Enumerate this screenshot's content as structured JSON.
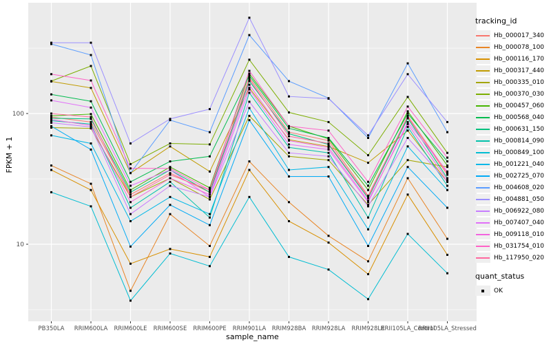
{
  "figure": {
    "background": "#FFFFFF",
    "panel_background": "#EBEBEB",
    "grid_color": "#FFFFFF",
    "point_color": "#000000",
    "axis_text_color": "#4D4D4D",
    "tick_color": "#333333"
  },
  "legend": {
    "tracking_title": "tracking_id",
    "quant_title": "quant_status",
    "quant_label": "OK"
  },
  "chart_data": {
    "type": "line",
    "title": "",
    "xlabel": "sample_name",
    "ylabel": "FPKM + 1",
    "y_scale": "log10",
    "y_ticks": [
      100,
      10
    ],
    "y_minor_ticks": [
      316,
      31.6,
      3.16
    ],
    "ylim": [
      2.6,
      650
    ],
    "grid": true,
    "legend_position": "right",
    "point_shape": "filled-square",
    "quant_status": "OK",
    "categories": [
      "PB350LA",
      "RRIM600LA",
      "RRIM600LE",
      "RRIM600SE",
      "RRIM600PE",
      "RRIM901LA",
      "RRIM928BA",
      "RRIM928LA",
      "RRIM928LE",
      "RRII105LA_Control",
      "RRII105LA_Stressed"
    ],
    "series": [
      {
        "name": "Hb_000017_340",
        "color": "#F8766D",
        "values": [
          94,
          86,
          24,
          35,
          25,
          188,
          72,
          62,
          23.5,
          94,
          34
        ]
      },
      {
        "name": "Hb_000078_100",
        "color": "#E88526",
        "values": [
          40,
          29,
          4.4,
          17,
          9.7,
          43,
          21,
          11.6,
          7.4,
          32,
          11
        ]
      },
      {
        "name": "Hb_000116_170",
        "color": "#D89000",
        "values": [
          37,
          26,
          7.1,
          9.2,
          8.0,
          37,
          15,
          10.3,
          5.9,
          24,
          8.3
        ]
      },
      {
        "name": "Hb_000317_440",
        "color": "#C09B00",
        "values": [
          176,
          157,
          35,
          56,
          36,
          157,
          63,
          56,
          42,
          74,
          30
        ]
      },
      {
        "name": "Hb_000335_010",
        "color": "#A3A500",
        "values": [
          78,
          77,
          23,
          32,
          22,
          96,
          47,
          44,
          20,
          44,
          39
        ]
      },
      {
        "name": "Hb_000370_030",
        "color": "#7CAE00",
        "values": [
          177,
          231,
          41,
          59,
          58,
          258,
          102,
          86,
          48,
          134,
          50
        ]
      },
      {
        "name": "Hb_000457_060",
        "color": "#45B500",
        "values": [
          96,
          99,
          26,
          39,
          27,
          202,
          80,
          64,
          26,
          104,
          40
        ]
      },
      {
        "name": "Hb_000568_040",
        "color": "#00BB4E",
        "values": [
          140,
          124,
          30,
          43,
          47,
          195,
          77,
          65,
          28,
          100,
          43
        ]
      },
      {
        "name": "Hb_000631_150",
        "color": "#00C07D",
        "values": [
          92,
          91,
          25,
          37,
          25,
          177,
          70,
          58,
          22.5,
          92,
          32
        ]
      },
      {
        "name": "Hb_000814_090",
        "color": "#00C1AA",
        "values": [
          88,
          83,
          19,
          30,
          16,
          144,
          55,
          50,
          16,
          79,
          28
        ]
      },
      {
        "name": "Hb_000849_100",
        "color": "#00BDD2",
        "values": [
          25,
          19.5,
          3.7,
          8.5,
          6.8,
          23,
          8.0,
          6.4,
          3.8,
          12,
          6.0
        ]
      },
      {
        "name": "Hb_001221_040",
        "color": "#00B7E7",
        "values": [
          68,
          59,
          15,
          23,
          17,
          110,
          37,
          39,
          13,
          56,
          26
        ]
      },
      {
        "name": "Hb_002725_070",
        "color": "#00AAF6",
        "values": [
          80,
          53,
          9.6,
          20,
          14,
          89,
          33,
          33,
          9.7,
          39,
          19
        ]
      },
      {
        "name": "Hb_004608_020",
        "color": "#5B9DFF",
        "values": [
          340,
          280,
          35,
          89,
          72,
          398,
          177,
          131,
          65,
          242,
          72
        ]
      },
      {
        "name": "Hb_004881_050",
        "color": "#9B8FFF",
        "values": [
          348,
          348,
          59,
          91,
          108,
          540,
          135,
          130,
          68,
          200,
          86
        ]
      },
      {
        "name": "Hb_006922_080",
        "color": "#C77CFF",
        "values": [
          85,
          79,
          17,
          28,
          23,
          123,
          50,
          47,
          19.5,
          65,
          30
        ]
      },
      {
        "name": "Hb_007407_040",
        "color": "#E16FF9",
        "values": [
          126,
          111,
          28,
          37,
          23,
          153,
          58,
          53,
          21,
          86,
          36
        ]
      },
      {
        "name": "Hb_009118_010",
        "color": "#F364DF",
        "values": [
          90,
          81,
          21,
          32,
          24,
          166,
          62,
          55,
          21.5,
          83,
          31
        ]
      },
      {
        "name": "Hb_031754_010",
        "color": "#FF61C7",
        "values": [
          200,
          179,
          38,
          38,
          26,
          212,
          80,
          74,
          30,
          113,
          46
        ]
      },
      {
        "name": "Hb_117950_020",
        "color": "#FF689E",
        "values": [
          100,
          94,
          23,
          34,
          26,
          183,
          67,
          59,
          23,
          96,
          35
        ]
      }
    ]
  }
}
